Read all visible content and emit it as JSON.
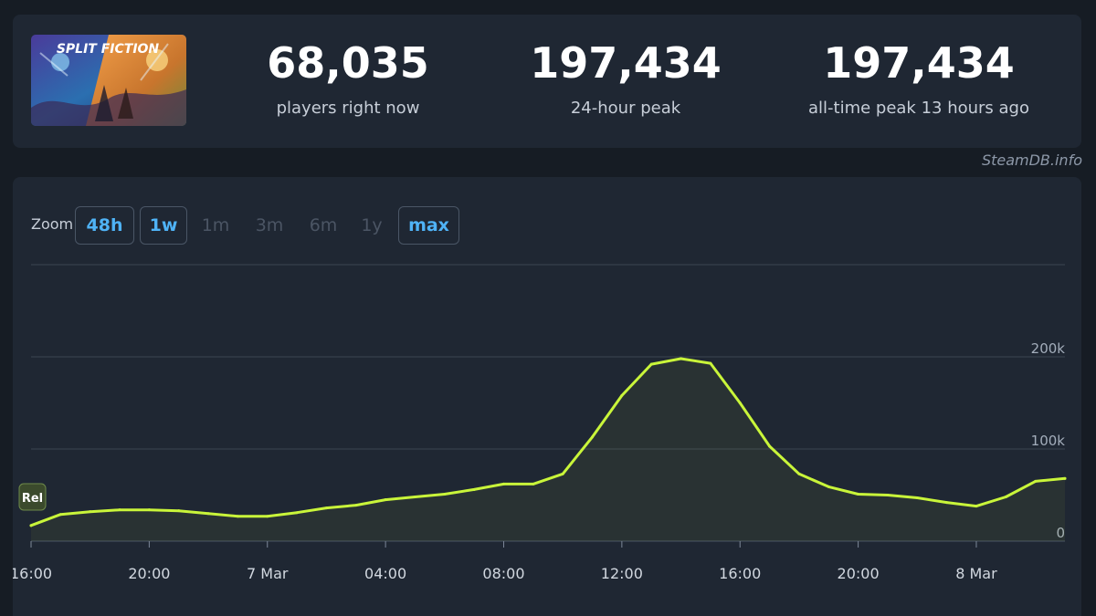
{
  "game": {
    "logo_text": "SPLIT FICTION"
  },
  "stats": [
    {
      "value": "68,035",
      "label": "players right now"
    },
    {
      "value": "197,434",
      "label": "24-hour peak"
    },
    {
      "value": "197,434",
      "label": "all-time peak 13 hours ago"
    }
  ],
  "credit": "SteamDB.info",
  "zoom": {
    "label": "Zoom",
    "options": [
      {
        "label": "48h",
        "state": "available"
      },
      {
        "label": "1w",
        "state": "available"
      },
      {
        "label": "1m",
        "state": "disabled"
      },
      {
        "label": "3m",
        "state": "disabled"
      },
      {
        "label": "6m",
        "state": "disabled"
      },
      {
        "label": "1y",
        "state": "disabled"
      },
      {
        "label": "max",
        "state": "available"
      }
    ]
  },
  "colors": {
    "line": "#c9f53a",
    "accent": "#4fb3f6",
    "marker": "#3b4a2c"
  },
  "chart_data": {
    "type": "line",
    "title": "",
    "xlabel": "",
    "ylabel": "",
    "ylim": [
      0,
      300000
    ],
    "yticks": [
      {
        "value": 0,
        "label": "0"
      },
      {
        "value": 100000,
        "label": "100k"
      },
      {
        "value": 200000,
        "label": "200k"
      }
    ],
    "xticks": [
      {
        "x": 0,
        "label": "16:00"
      },
      {
        "x": 4,
        "label": "20:00"
      },
      {
        "x": 8,
        "label": "7 Mar"
      },
      {
        "x": 12,
        "label": "04:00"
      },
      {
        "x": 16,
        "label": "08:00"
      },
      {
        "x": 20,
        "label": "12:00"
      },
      {
        "x": 24,
        "label": "16:00"
      },
      {
        "x": 28,
        "label": "20:00"
      },
      {
        "x": 32,
        "label": "8 Mar"
      }
    ],
    "xlim": [
      0,
      35
    ],
    "annotation": {
      "label": "Rel",
      "x": 0
    },
    "series": [
      {
        "x": [
          0,
          1,
          2,
          3,
          4,
          5,
          6,
          7,
          8,
          9,
          10,
          11,
          12,
          13,
          14,
          15,
          16,
          17,
          18,
          19,
          20,
          21,
          22,
          23,
          24,
          25,
          26,
          27,
          28,
          29,
          30,
          31,
          32,
          33,
          34,
          35
        ],
        "values": [
          17000,
          29000,
          32000,
          34000,
          34000,
          33000,
          30000,
          27000,
          27000,
          31000,
          36000,
          39000,
          45000,
          48000,
          51000,
          56000,
          62000,
          62000,
          73000,
          113000,
          158000,
          192000,
          198000,
          193000,
          150000,
          103000,
          73000,
          59000,
          51000,
          50000,
          47000,
          42000,
          38000,
          48000,
          65000,
          68000
        ]
      }
    ]
  }
}
